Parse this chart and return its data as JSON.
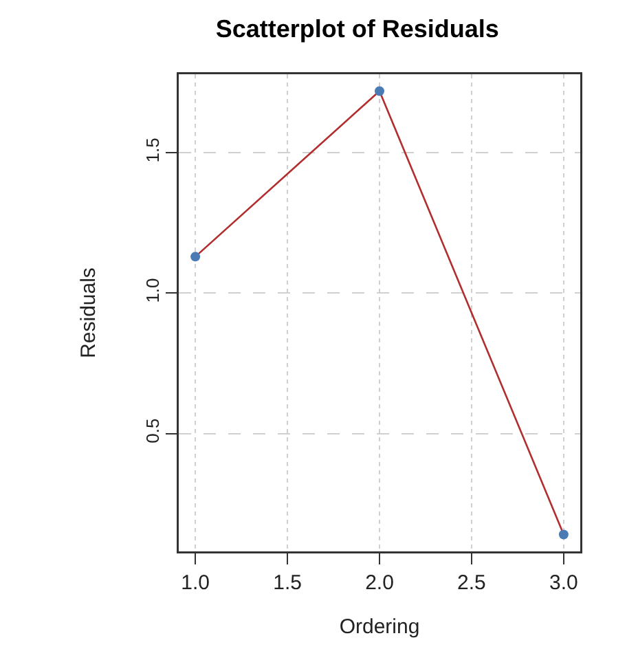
{
  "chart_data": {
    "type": "line",
    "title": "Scatterplot of Residuals",
    "xlabel": "Ordering",
    "ylabel": "Residuals",
    "x": [
      1,
      2,
      3
    ],
    "series": [
      {
        "color": "#b22e2e",
        "colors": [
          "#4a7bb5",
          "#4a7bb5",
          "#4a7bb5"
        ],
        "values": [
          1.13,
          1.72,
          0.14
        ]
      }
    ],
    "xlim": [
      0.91,
      3.09
    ],
    "xticks": [
      {
        "value": 1,
        "label": "1.0"
      },
      1.5,
      {
        "value": 2,
        "label": "2.0"
      },
      2.5,
      {
        "value": 3,
        "label": "3.0"
      }
    ],
    "ylim": [
      0.08,
      1.78
    ],
    "yticks": [
      0.5,
      {
        "value": 1,
        "label": "1.0"
      },
      1.5
    ],
    "grid": true,
    "marker": "circle",
    "line_style": "solid"
  }
}
